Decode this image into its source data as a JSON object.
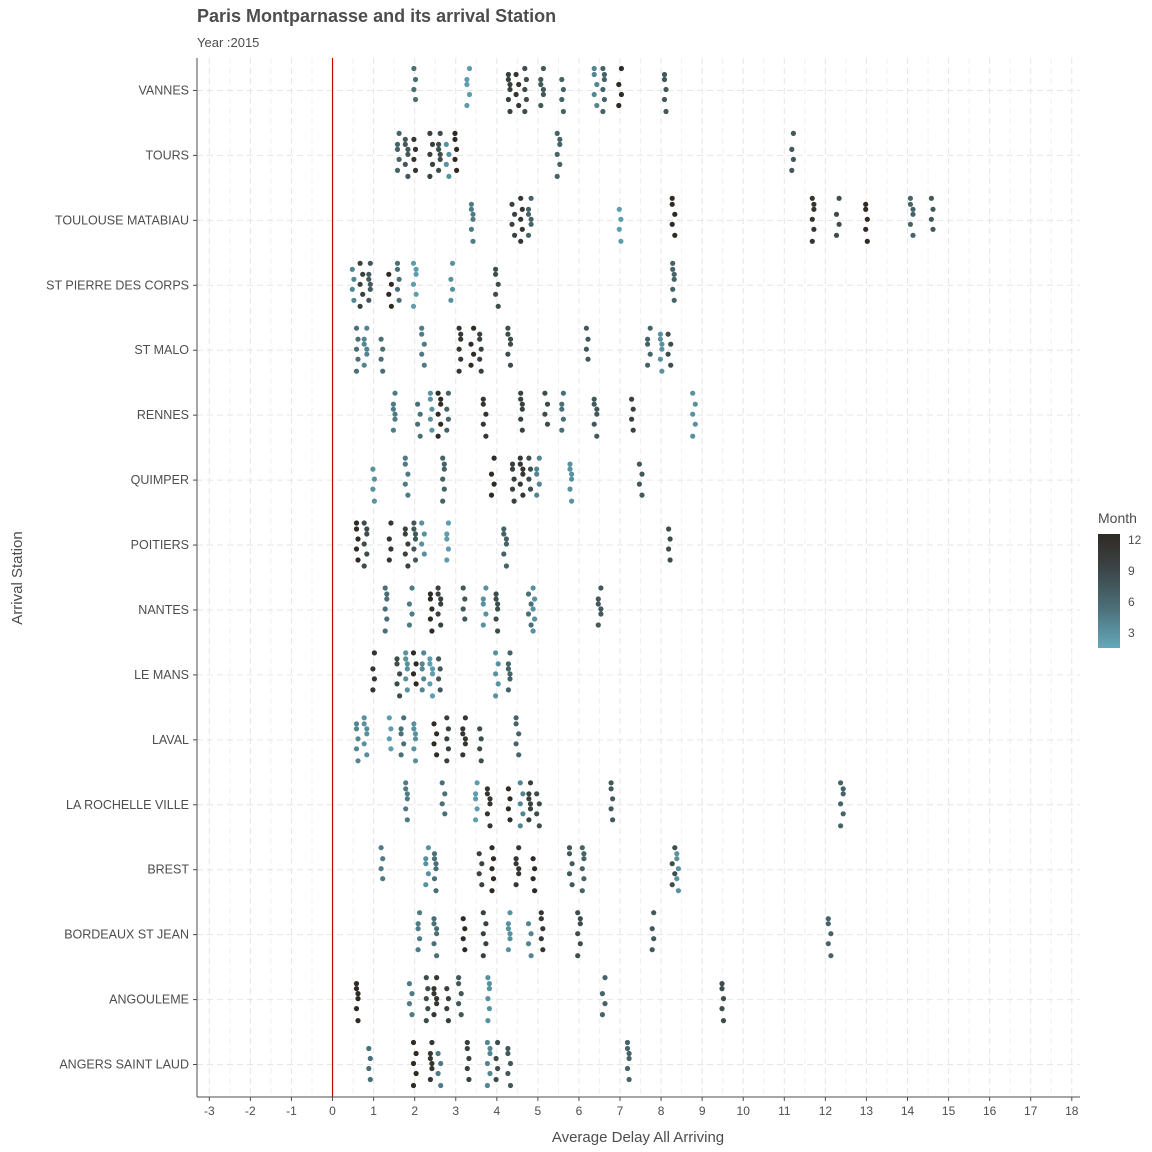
{
  "chart_data": {
    "type": "scatter",
    "title": "Paris Montparnasse and its arrival Station",
    "subtitle": "Year :2015",
    "xlabel": "Average Delay All Arriving",
    "ylabel": "Arrival Station",
    "xlim": [
      -3.3,
      18.2
    ],
    "x_ticks": [
      "-3",
      "-2",
      "-1",
      "0",
      "1",
      "2",
      "3",
      "4",
      "5",
      "6",
      "7",
      "8",
      "9",
      "10",
      "11",
      "12",
      "13",
      "14",
      "15",
      "16",
      "17",
      "18"
    ],
    "reference_line_x": 0,
    "reference_line_color": "#cc0000",
    "grid": true,
    "legend": {
      "title": "Month",
      "position": "right",
      "labels": [
        "12",
        "9",
        "6",
        "3"
      ],
      "range": [
        1,
        12
      ],
      "low_color": "#62a9bb",
      "high_color": "#2f2a23"
    },
    "categories": [
      "VANNES",
      "TOURS",
      "TOULOUSE MATABIAU",
      "ST PIERRE DES CORPS",
      "ST MALO",
      "RENNES",
      "QUIMPER",
      "POITIERS",
      "NANTES",
      "LE MANS",
      "LAVAL",
      "LA ROCHELLE VILLE",
      "BREST",
      "BORDEAUX ST JEAN",
      "ANGOULEME",
      "ANGERS SAINT LAUD"
    ],
    "points": [
      {
        "station": "VANNES",
        "x": [
          2.0,
          3.3,
          4.3,
          4.5,
          4.7,
          5.1,
          5.6,
          6.4,
          6.6,
          7.0,
          8.1
        ],
        "month": [
          6,
          2,
          10,
          11,
          9,
          8,
          7,
          4,
          7,
          12,
          8
        ]
      },
      {
        "station": "TOURS",
        "x": [
          1.6,
          1.8,
          2.0,
          2.4,
          2.6,
          2.8,
          3.0,
          5.5,
          11.2
        ],
        "month": [
          7,
          8,
          11,
          10,
          9,
          3,
          12,
          7,
          8
        ]
      },
      {
        "station": "TOULOUSE MATABIAU",
        "x": [
          3.4,
          4.4,
          4.6,
          4.8,
          7.0,
          8.3,
          11.7,
          12.3,
          13.0,
          14.1,
          14.6
        ],
        "month": [
          5,
          10,
          11,
          7,
          2,
          12,
          11,
          9,
          12,
          7,
          8
        ]
      },
      {
        "station": "ST PIERRE DES CORPS",
        "x": [
          0.5,
          0.7,
          0.9,
          1.4,
          1.6,
          2.0,
          2.9,
          4.0,
          8.3
        ],
        "month": [
          4,
          10,
          8,
          12,
          6,
          2,
          3,
          9,
          7
        ]
      },
      {
        "station": "ST MALO",
        "x": [
          0.6,
          0.8,
          1.2,
          2.2,
          3.1,
          3.4,
          3.6,
          4.3,
          6.2,
          7.7,
          8.0,
          8.2
        ],
        "month": [
          6,
          4,
          6,
          5,
          11,
          12,
          10,
          9,
          8,
          7,
          3,
          9
        ]
      },
      {
        "station": "RENNES",
        "x": [
          1.5,
          2.1,
          2.4,
          2.6,
          2.8,
          3.7,
          4.6,
          5.2,
          5.6,
          6.4,
          7.3,
          8.8
        ],
        "month": [
          5,
          6,
          3,
          12,
          7,
          11,
          10,
          9,
          6,
          8,
          10,
          3
        ]
      },
      {
        "station": "QUIMPER",
        "x": [
          1.0,
          1.8,
          2.7,
          3.9,
          4.4,
          4.6,
          4.8,
          5.0,
          5.8,
          7.5
        ],
        "month": [
          3,
          5,
          7,
          12,
          10,
          11,
          9,
          4,
          3,
          8
        ]
      },
      {
        "station": "POITIERS",
        "x": [
          0.6,
          0.8,
          1.4,
          1.8,
          2.0,
          2.2,
          2.8,
          4.2,
          8.2
        ],
        "month": [
          12,
          9,
          11,
          10,
          8,
          3,
          2,
          7,
          9
        ]
      },
      {
        "station": "NANTES",
        "x": [
          1.3,
          1.9,
          2.4,
          2.6,
          3.2,
          3.7,
          4.0,
          4.8,
          4.9,
          6.5
        ],
        "month": [
          6,
          5,
          12,
          10,
          8,
          3,
          9,
          6,
          3,
          8
        ]
      },
      {
        "station": "LE MANS",
        "x": [
          1.0,
          1.6,
          1.8,
          2.0,
          2.2,
          2.4,
          2.6,
          4.0,
          4.3
        ],
        "month": [
          11,
          9,
          3,
          12,
          4,
          2,
          8,
          3,
          7
        ]
      },
      {
        "station": "LAVAL",
        "x": [
          0.6,
          0.8,
          1.4,
          1.7,
          2.0,
          2.5,
          2.8,
          3.2,
          3.6,
          4.5
        ],
        "month": [
          4,
          3,
          2,
          6,
          3,
          12,
          10,
          11,
          9,
          7
        ]
      },
      {
        "station": "LA ROCHELLE VILLE",
        "x": [
          1.8,
          2.7,
          3.5,
          3.8,
          4.3,
          4.6,
          4.8,
          5.0,
          6.8,
          12.4
        ],
        "month": [
          5,
          6,
          2,
          11,
          12,
          4,
          10,
          9,
          8,
          7
        ]
      },
      {
        "station": "BREST",
        "x": [
          1.2,
          2.3,
          2.5,
          3.6,
          3.9,
          4.5,
          4.9,
          5.8,
          6.1,
          8.3,
          8.4
        ],
        "month": [
          5,
          3,
          6,
          10,
          12,
          11,
          12,
          8,
          7,
          9,
          3
        ]
      },
      {
        "station": "BORDEAUX ST JEAN",
        "x": [
          2.1,
          2.5,
          3.2,
          3.7,
          4.3,
          4.8,
          5.1,
          6.0,
          7.8,
          12.1
        ],
        "month": [
          5,
          6,
          12,
          10,
          3,
          4,
          11,
          9,
          8,
          7
        ]
      },
      {
        "station": "ANGOULEME",
        "x": [
          0.6,
          1.9,
          2.3,
          2.5,
          2.8,
          3.1,
          3.8,
          6.6,
          9.5
        ],
        "month": [
          12,
          5,
          9,
          11,
          10,
          8,
          3,
          7,
          9
        ]
      },
      {
        "station": "ANGERS SAINT LAUD",
        "x": [
          0.9,
          2.0,
          2.4,
          2.6,
          3.3,
          3.8,
          4.0,
          4.3,
          7.2
        ],
        "month": [
          6,
          12,
          11,
          5,
          10,
          4,
          9,
          8,
          7
        ]
      }
    ]
  }
}
